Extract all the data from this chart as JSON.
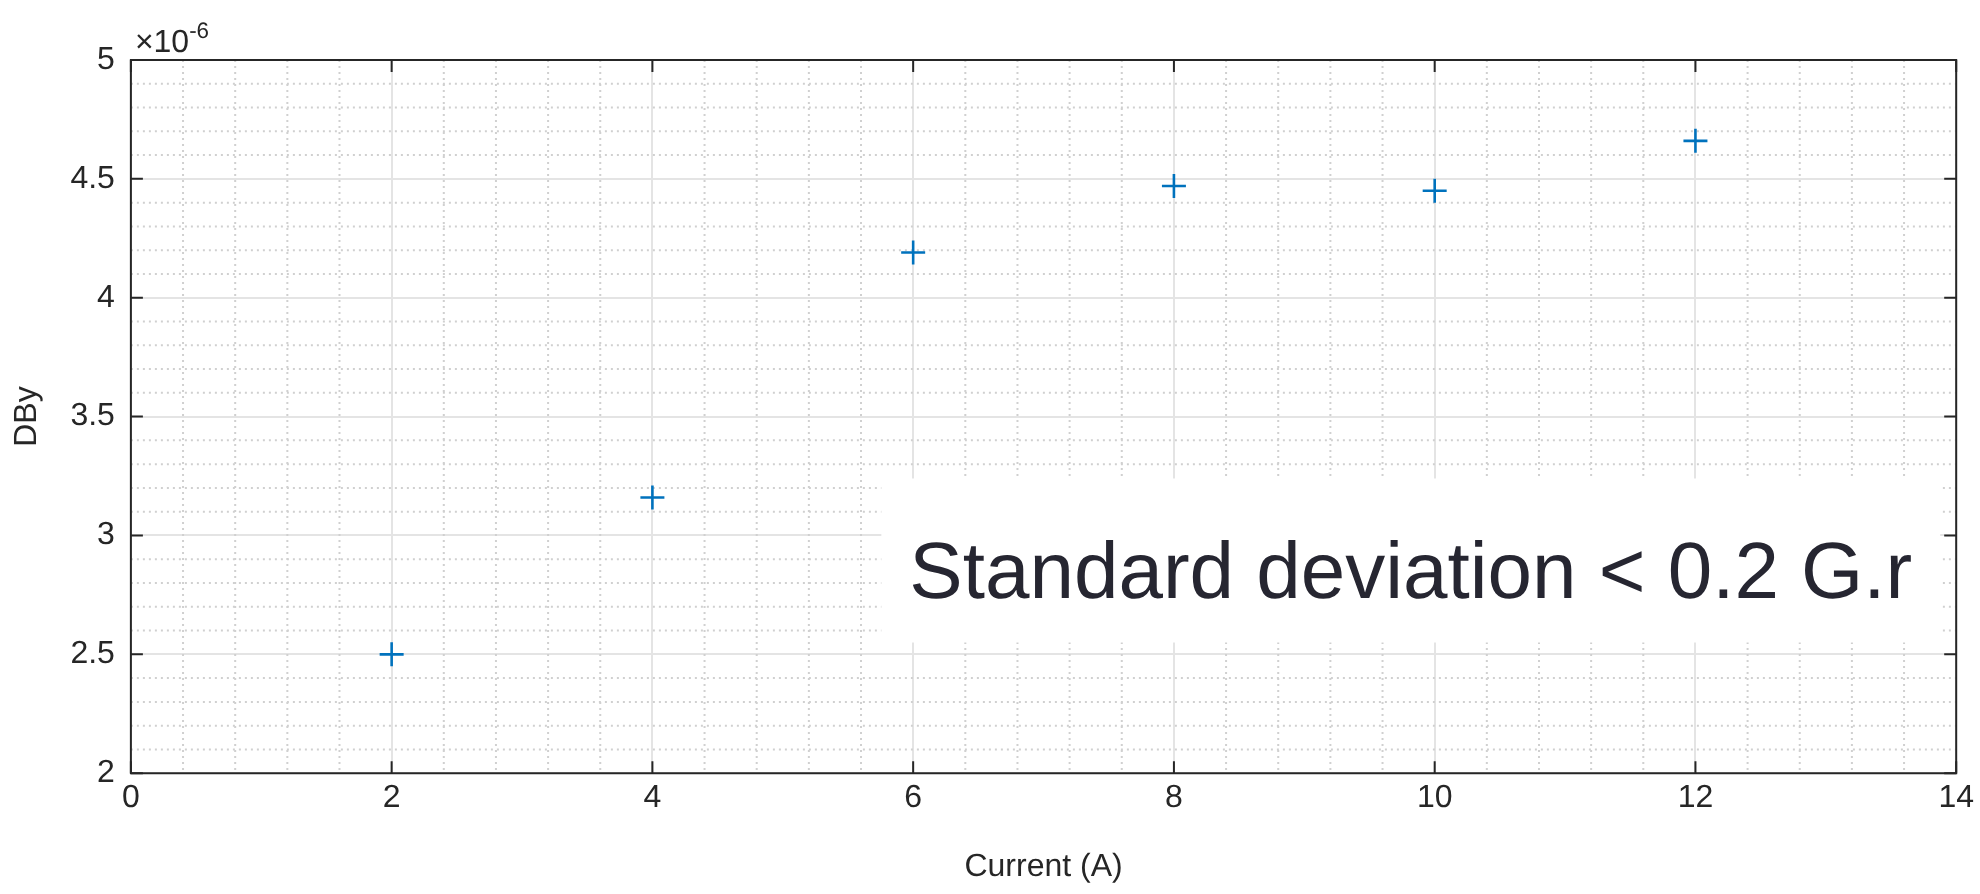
{
  "chart_data": {
    "type": "scatter",
    "xlabel": "Current (A)",
    "ylabel": "DBy",
    "x": [
      2,
      4,
      6,
      8,
      10,
      12
    ],
    "series": [
      {
        "color": "#0072bd",
        "values": [
          2.5,
          3.16,
          4.19,
          4.47,
          4.45,
          4.66
        ]
      }
    ],
    "xlim": [
      0,
      14
    ],
    "xticks": [
      0,
      2,
      4,
      6,
      8,
      10,
      12,
      14
    ],
    "ylim": [
      2,
      5
    ],
    "yticks": [
      2,
      2.5,
      3,
      3.5,
      4,
      4.5,
      5
    ],
    "grid": true,
    "marker": "cross",
    "annotations": [
      "×10$^{-6}$",
      "Standard deviation < 0.2 G.r"
    ]
  }
}
